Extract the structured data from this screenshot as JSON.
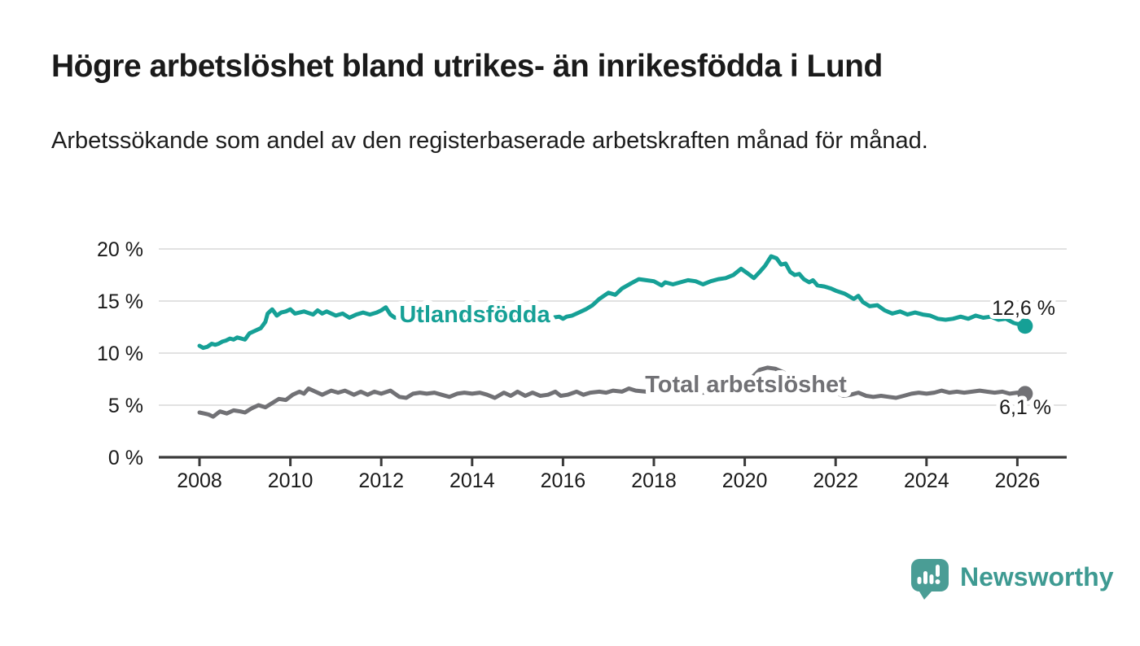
{
  "title": "Högre arbetslöshet bland utrikes- än inrikesfödda i Lund",
  "subtitle": "Arbetssökande som andel av den registerbaserade arbetskraften månad för månad.",
  "branding": {
    "logo_icon": "newsworthy-speech-bubble-chart-icon",
    "wordmark": "Newsworthy",
    "logo_color": "#4a9d95",
    "wordmark_color": "#3e9a92"
  },
  "chart_data": {
    "type": "line",
    "title": "Högre arbetslöshet bland utrikes- än inrikesfödda i Lund",
    "subtitle": "Arbetssökande som andel av den registerbaserade arbetskraften månad för månad.",
    "unit": "percent",
    "grid": "horizontal",
    "legend_position": "inline-on-line",
    "colors": {
      "gridline": "#d9d9d9",
      "axis": "#3a3a3a",
      "tick_text": "#1a1a1a",
      "value_label_text": "#1a1a1a"
    },
    "x_axis": {
      "label": "",
      "range_years": [
        2007.1,
        2027.1
      ],
      "ticks": [
        {
          "v": 2008,
          "label": "2008"
        },
        {
          "v": 2010,
          "label": "2010"
        },
        {
          "v": 2012,
          "label": "2012"
        },
        {
          "v": 2014,
          "label": "2014"
        },
        {
          "v": 2016,
          "label": "2016"
        },
        {
          "v": 2018,
          "label": "2018"
        },
        {
          "v": 2020,
          "label": "2020"
        },
        {
          "v": 2022,
          "label": "2022"
        },
        {
          "v": 2024,
          "label": "2024"
        },
        {
          "v": 2026,
          "label": "2026"
        }
      ]
    },
    "y_axis": {
      "label": "",
      "range": [
        0,
        20
      ],
      "ticks": [
        {
          "v": 0,
          "label": "0 %"
        },
        {
          "v": 5,
          "label": "5 %"
        },
        {
          "v": 10,
          "label": "10 %"
        },
        {
          "v": 15,
          "label": "15 %"
        },
        {
          "v": 20,
          "label": "20 %"
        }
      ]
    },
    "series": [
      {
        "name": "Utlandsfödda",
        "color": "#16a096",
        "end_value": 12.6,
        "end_label": "12,6 %",
        "points": [
          [
            2008.0,
            10.7
          ],
          [
            2008.08,
            10.5
          ],
          [
            2008.17,
            10.6
          ],
          [
            2008.27,
            10.9
          ],
          [
            2008.35,
            10.8
          ],
          [
            2008.42,
            10.9
          ],
          [
            2008.5,
            11.1
          ],
          [
            2008.58,
            11.2
          ],
          [
            2008.67,
            11.4
          ],
          [
            2008.75,
            11.3
          ],
          [
            2008.83,
            11.5
          ],
          [
            2008.92,
            11.4
          ],
          [
            2009.0,
            11.3
          ],
          [
            2009.1,
            11.9
          ],
          [
            2009.2,
            12.1
          ],
          [
            2009.35,
            12.4
          ],
          [
            2009.45,
            13.0
          ],
          [
            2009.5,
            13.8
          ],
          [
            2009.6,
            14.2
          ],
          [
            2009.7,
            13.6
          ],
          [
            2009.8,
            13.9
          ],
          [
            2009.9,
            14.0
          ],
          [
            2010.0,
            14.2
          ],
          [
            2010.1,
            13.8
          ],
          [
            2010.3,
            14.0
          ],
          [
            2010.5,
            13.7
          ],
          [
            2010.6,
            14.1
          ],
          [
            2010.7,
            13.8
          ],
          [
            2010.8,
            14.0
          ],
          [
            2011.0,
            13.6
          ],
          [
            2011.15,
            13.8
          ],
          [
            2011.3,
            13.4
          ],
          [
            2011.45,
            13.7
          ],
          [
            2011.6,
            13.9
          ],
          [
            2011.75,
            13.7
          ],
          [
            2011.9,
            13.9
          ],
          [
            2012.0,
            14.1
          ],
          [
            2012.1,
            14.4
          ],
          [
            2012.2,
            13.7
          ],
          [
            2012.3,
            13.4
          ],
          [
            2012.5,
            13.6
          ],
          [
            2012.75,
            13.5
          ],
          [
            2013.0,
            13.5
          ],
          [
            2013.25,
            13.6
          ],
          [
            2013.5,
            13.4
          ],
          [
            2013.75,
            13.5
          ],
          [
            2014.0,
            13.5
          ],
          [
            2014.25,
            13.4
          ],
          [
            2014.5,
            13.5
          ],
          [
            2014.75,
            13.4
          ],
          [
            2015.0,
            13.5
          ],
          [
            2015.25,
            13.4
          ],
          [
            2015.5,
            13.5
          ],
          [
            2015.75,
            13.4
          ],
          [
            2015.92,
            13.5
          ],
          [
            2016.0,
            13.3
          ],
          [
            2016.08,
            13.5
          ],
          [
            2016.2,
            13.6
          ],
          [
            2016.35,
            13.9
          ],
          [
            2016.5,
            14.2
          ],
          [
            2016.65,
            14.6
          ],
          [
            2016.8,
            15.2
          ],
          [
            2017.0,
            15.8
          ],
          [
            2017.15,
            15.6
          ],
          [
            2017.3,
            16.2
          ],
          [
            2017.5,
            16.7
          ],
          [
            2017.67,
            17.1
          ],
          [
            2017.83,
            17.0
          ],
          [
            2018.0,
            16.9
          ],
          [
            2018.17,
            16.5
          ],
          [
            2018.25,
            16.8
          ],
          [
            2018.42,
            16.6
          ],
          [
            2018.58,
            16.8
          ],
          [
            2018.75,
            17.0
          ],
          [
            2018.92,
            16.9
          ],
          [
            2019.08,
            16.6
          ],
          [
            2019.25,
            16.9
          ],
          [
            2019.42,
            17.1
          ],
          [
            2019.58,
            17.2
          ],
          [
            2019.75,
            17.5
          ],
          [
            2019.92,
            18.1
          ],
          [
            2020.08,
            17.6
          ],
          [
            2020.2,
            17.2
          ],
          [
            2020.33,
            17.8
          ],
          [
            2020.45,
            18.4
          ],
          [
            2020.58,
            19.3
          ],
          [
            2020.7,
            19.1
          ],
          [
            2020.8,
            18.5
          ],
          [
            2020.9,
            18.6
          ],
          [
            2021.0,
            17.8
          ],
          [
            2021.1,
            17.5
          ],
          [
            2021.2,
            17.6
          ],
          [
            2021.3,
            17.1
          ],
          [
            2021.42,
            16.8
          ],
          [
            2021.5,
            17.0
          ],
          [
            2021.6,
            16.5
          ],
          [
            2021.75,
            16.4
          ],
          [
            2021.9,
            16.2
          ],
          [
            2022.0,
            16.0
          ],
          [
            2022.2,
            15.7
          ],
          [
            2022.4,
            15.2
          ],
          [
            2022.5,
            15.5
          ],
          [
            2022.6,
            14.9
          ],
          [
            2022.75,
            14.5
          ],
          [
            2022.92,
            14.6
          ],
          [
            2023.08,
            14.1
          ],
          [
            2023.25,
            13.8
          ],
          [
            2023.42,
            14.0
          ],
          [
            2023.58,
            13.7
          ],
          [
            2023.75,
            13.9
          ],
          [
            2023.92,
            13.7
          ],
          [
            2024.08,
            13.6
          ],
          [
            2024.25,
            13.3
          ],
          [
            2024.42,
            13.2
          ],
          [
            2024.58,
            13.3
          ],
          [
            2024.75,
            13.5
          ],
          [
            2024.92,
            13.3
          ],
          [
            2025.08,
            13.6
          ],
          [
            2025.25,
            13.4
          ],
          [
            2025.42,
            13.5
          ],
          [
            2025.58,
            13.2
          ],
          [
            2025.75,
            13.3
          ],
          [
            2025.92,
            12.9
          ],
          [
            2026.08,
            12.7
          ],
          [
            2026.17,
            12.6
          ]
        ]
      },
      {
        "name": "Total arbetslöshet",
        "color": "#717175",
        "end_value": 6.1,
        "end_label": "6,1 %",
        "points": [
          [
            2008.0,
            4.3
          ],
          [
            2008.1,
            4.2
          ],
          [
            2008.2,
            4.1
          ],
          [
            2008.3,
            3.9
          ],
          [
            2008.45,
            4.4
          ],
          [
            2008.6,
            4.2
          ],
          [
            2008.75,
            4.5
          ],
          [
            2008.9,
            4.4
          ],
          [
            2009.0,
            4.3
          ],
          [
            2009.15,
            4.7
          ],
          [
            2009.3,
            5.0
          ],
          [
            2009.45,
            4.8
          ],
          [
            2009.6,
            5.2
          ],
          [
            2009.75,
            5.6
          ],
          [
            2009.9,
            5.5
          ],
          [
            2010.05,
            6.0
          ],
          [
            2010.2,
            6.3
          ],
          [
            2010.3,
            6.1
          ],
          [
            2010.4,
            6.6
          ],
          [
            2010.55,
            6.3
          ],
          [
            2010.7,
            6.0
          ],
          [
            2010.9,
            6.4
          ],
          [
            2011.05,
            6.2
          ],
          [
            2011.2,
            6.4
          ],
          [
            2011.4,
            6.0
          ],
          [
            2011.55,
            6.3
          ],
          [
            2011.7,
            6.0
          ],
          [
            2011.85,
            6.3
          ],
          [
            2012.0,
            6.1
          ],
          [
            2012.2,
            6.4
          ],
          [
            2012.4,
            5.8
          ],
          [
            2012.55,
            5.7
          ],
          [
            2012.7,
            6.1
          ],
          [
            2012.85,
            6.2
          ],
          [
            2013.0,
            6.1
          ],
          [
            2013.17,
            6.2
          ],
          [
            2013.33,
            6.0
          ],
          [
            2013.5,
            5.8
          ],
          [
            2013.67,
            6.1
          ],
          [
            2013.83,
            6.2
          ],
          [
            2014.0,
            6.1
          ],
          [
            2014.17,
            6.2
          ],
          [
            2014.33,
            6.0
          ],
          [
            2014.5,
            5.7
          ],
          [
            2014.7,
            6.2
          ],
          [
            2014.85,
            5.9
          ],
          [
            2015.0,
            6.3
          ],
          [
            2015.17,
            5.9
          ],
          [
            2015.33,
            6.2
          ],
          [
            2015.5,
            5.9
          ],
          [
            2015.67,
            6.0
          ],
          [
            2015.83,
            6.3
          ],
          [
            2015.95,
            5.9
          ],
          [
            2016.1,
            6.0
          ],
          [
            2016.3,
            6.3
          ],
          [
            2016.45,
            6.0
          ],
          [
            2016.6,
            6.2
          ],
          [
            2016.8,
            6.3
          ],
          [
            2016.95,
            6.2
          ],
          [
            2017.1,
            6.4
          ],
          [
            2017.3,
            6.3
          ],
          [
            2017.45,
            6.6
          ],
          [
            2017.6,
            6.4
          ],
          [
            2017.83,
            6.3
          ],
          [
            2018.0,
            6.2
          ],
          [
            2018.25,
            6.1
          ],
          [
            2018.5,
            6.2
          ],
          [
            2018.75,
            6.1
          ],
          [
            2019.0,
            6.2
          ],
          [
            2019.25,
            6.2
          ],
          [
            2019.5,
            6.3
          ],
          [
            2019.75,
            6.5
          ],
          [
            2020.0,
            6.8
          ],
          [
            2020.17,
            7.7
          ],
          [
            2020.33,
            8.4
          ],
          [
            2020.5,
            8.6
          ],
          [
            2020.67,
            8.5
          ],
          [
            2020.83,
            8.2
          ],
          [
            2021.0,
            7.8
          ],
          [
            2021.17,
            7.4
          ],
          [
            2021.33,
            7.0
          ],
          [
            2021.5,
            6.8
          ],
          [
            2021.67,
            6.6
          ],
          [
            2021.83,
            6.4
          ],
          [
            2022.0,
            6.2
          ],
          [
            2022.17,
            5.9
          ],
          [
            2022.33,
            6.0
          ],
          [
            2022.5,
            6.2
          ],
          [
            2022.67,
            5.9
          ],
          [
            2022.83,
            5.8
          ],
          [
            2023.0,
            5.9
          ],
          [
            2023.17,
            5.8
          ],
          [
            2023.33,
            5.7
          ],
          [
            2023.5,
            5.9
          ],
          [
            2023.67,
            6.1
          ],
          [
            2023.83,
            6.2
          ],
          [
            2024.0,
            6.1
          ],
          [
            2024.17,
            6.2
          ],
          [
            2024.33,
            6.4
          ],
          [
            2024.5,
            6.2
          ],
          [
            2024.67,
            6.3
          ],
          [
            2024.83,
            6.2
          ],
          [
            2025.0,
            6.3
          ],
          [
            2025.17,
            6.4
          ],
          [
            2025.33,
            6.3
          ],
          [
            2025.5,
            6.2
          ],
          [
            2025.67,
            6.3
          ],
          [
            2025.83,
            6.1
          ],
          [
            2026.0,
            6.2
          ],
          [
            2026.17,
            6.1
          ]
        ]
      }
    ]
  }
}
